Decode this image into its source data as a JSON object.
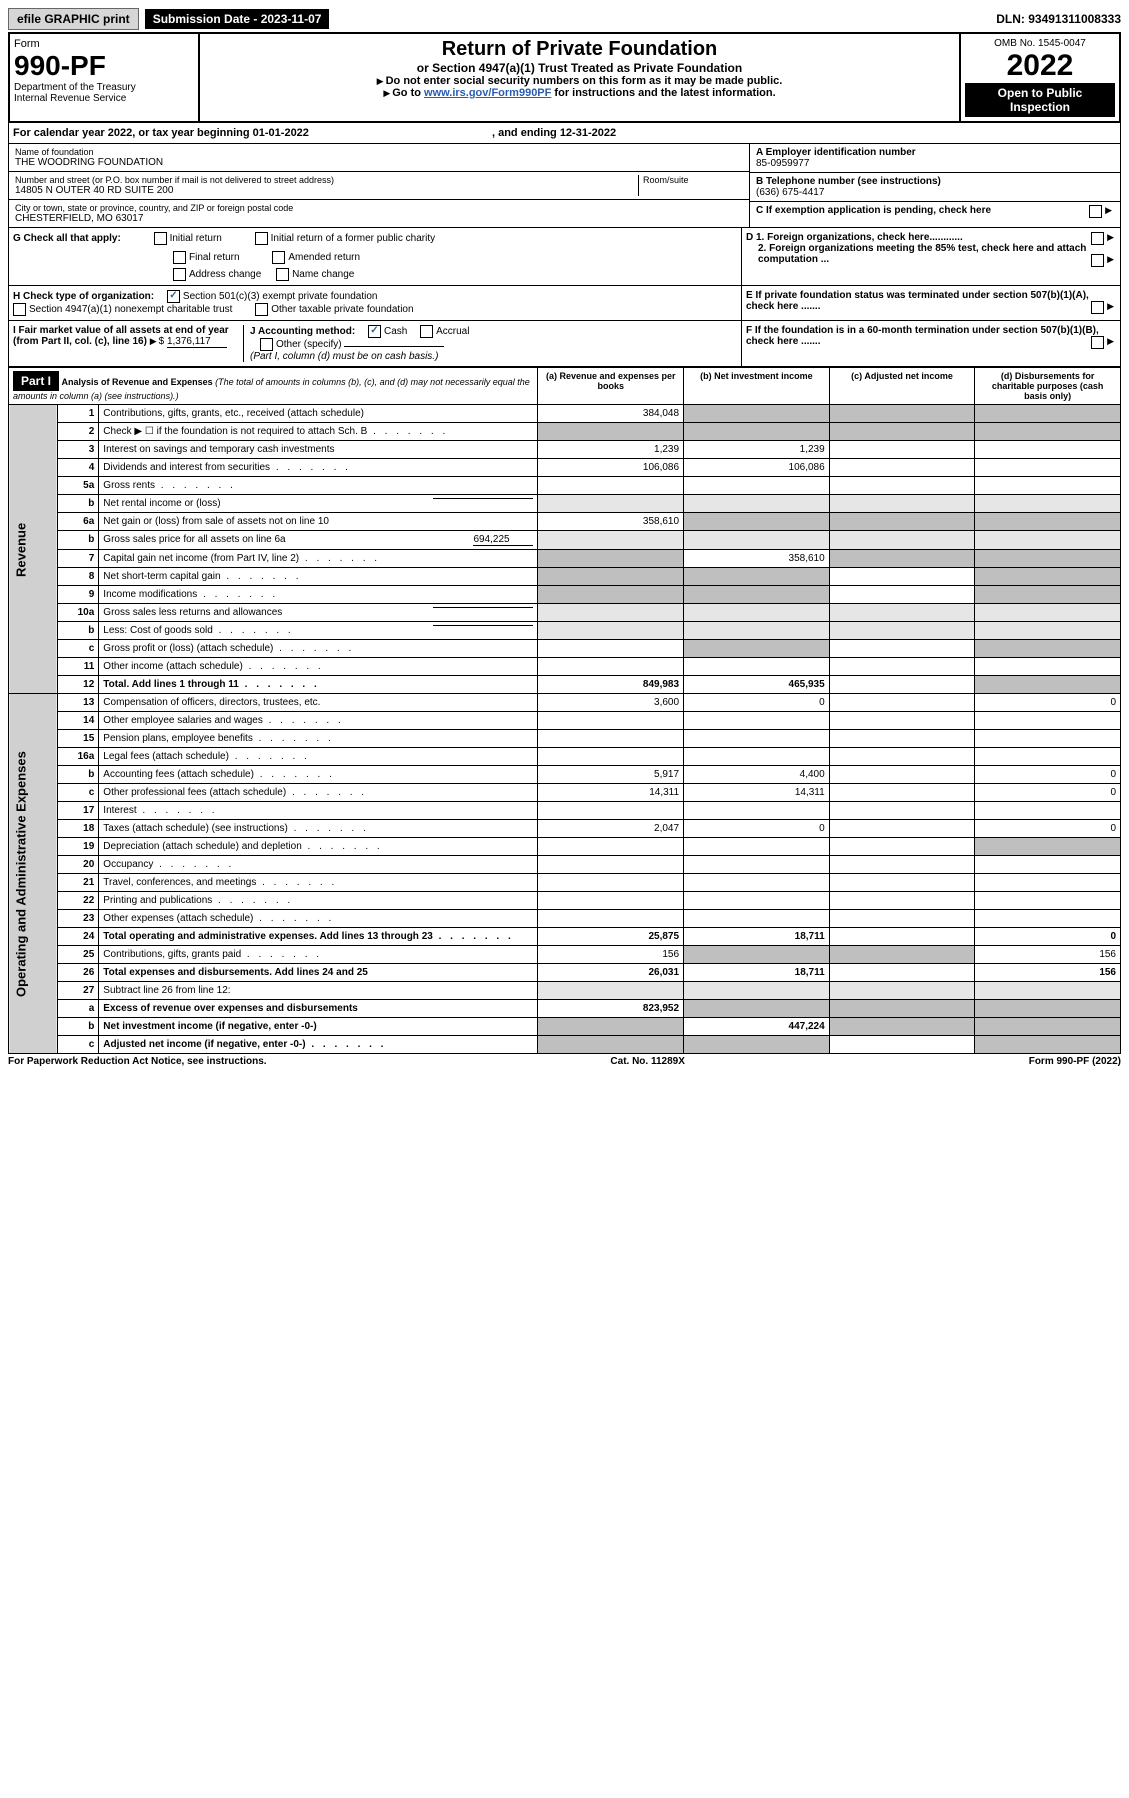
{
  "top": {
    "efile": "efile GRAPHIC print",
    "submission": "Submission Date - 2023-11-07",
    "dln": "DLN: 93491311008333"
  },
  "header": {
    "form_label": "Form",
    "form_number": "990-PF",
    "dept": "Department of the Treasury",
    "irs": "Internal Revenue Service",
    "title": "Return of Private Foundation",
    "subtitle": "or Section 4947(a)(1) Trust Treated as Private Foundation",
    "instr1": "Do not enter social security numbers on this form as it may be made public.",
    "instr2_prefix": "Go to ",
    "instr2_link": "www.irs.gov/Form990PF",
    "instr2_suffix": " for instructions and the latest information.",
    "omb": "OMB No. 1545-0047",
    "year": "2022",
    "open": "Open to Public Inspection"
  },
  "cal_year": "For calendar year 2022, or tax year beginning 01-01-2022",
  "cal_year_end": ", and ending 12-31-2022",
  "name_label": "Name of foundation",
  "name": "THE WOODRING FOUNDATION",
  "addr_label": "Number and street (or P.O. box number if mail is not delivered to street address)",
  "addr": "14805 N OUTER 40 RD SUITE 200",
  "room_label": "Room/suite",
  "city_label": "City or town, state or province, country, and ZIP or foreign postal code",
  "city": "CHESTERFIELD, MO  63017",
  "ein_label": "A Employer identification number",
  "ein": "85-0959977",
  "phone_label": "B Telephone number (see instructions)",
  "phone": "(636) 675-4417",
  "c_label": "C If exemption application is pending, check here",
  "d1": "D 1. Foreign organizations, check here............",
  "d2": "2. Foreign organizations meeting the 85% test, check here and attach computation ...",
  "e_label": "E If private foundation status was terminated under section 507(b)(1)(A), check here .......",
  "f_label": "F If the foundation is in a 60-month termination under section 507(b)(1)(B), check here .......",
  "g_label": "G Check all that apply:",
  "g_opts": {
    "initial": "Initial return",
    "initial_former": "Initial return of a former public charity",
    "final": "Final return",
    "amended": "Amended return",
    "address": "Address change",
    "name": "Name change"
  },
  "h_label": "H Check type of organization:",
  "h_501c3": "Section 501(c)(3) exempt private foundation",
  "h_4947": "Section 4947(a)(1) nonexempt charitable trust",
  "h_other_tax": "Other taxable private foundation",
  "i_label": "I Fair market value of all assets at end of year (from Part II, col. (c), line 16)",
  "i_value": "1,376,117",
  "j_label": "J Accounting method:",
  "j_cash": "Cash",
  "j_accrual": "Accrual",
  "j_other": "Other (specify)",
  "j_note": "(Part I, column (d) must be on cash basis.)",
  "part1_label": "Part I",
  "part1_title": "Analysis of Revenue and Expenses",
  "part1_note": "(The total of amounts in columns (b), (c), and (d) may not necessarily equal the amounts in column (a) (see instructions).)",
  "cols": {
    "a": "(a) Revenue and expenses per books",
    "b": "(b) Net investment income",
    "c": "(c) Adjusted net income",
    "d": "(d) Disbursements for charitable purposes (cash basis only)"
  },
  "section_labels": {
    "revenue": "Revenue",
    "opex": "Operating and Administrative Expenses"
  },
  "rows": [
    {
      "n": "1",
      "desc": "Contributions, gifts, grants, etc., received (attach schedule)",
      "a": "384,048",
      "shade": [
        "b",
        "c",
        "d"
      ]
    },
    {
      "n": "2",
      "desc": "Check ▶ ☐ if the foundation is not required to attach Sch. B",
      "dots": true,
      "shade": [
        "a",
        "b",
        "c",
        "d"
      ]
    },
    {
      "n": "3",
      "desc": "Interest on savings and temporary cash investments",
      "a": "1,239",
      "b": "1,239"
    },
    {
      "n": "4",
      "desc": "Dividends and interest from securities",
      "dots": true,
      "a": "106,086",
      "b": "106,086"
    },
    {
      "n": "5a",
      "desc": "Gross rents",
      "dots": true
    },
    {
      "n": "b",
      "desc": "Net rental income or (loss)",
      "underline": true,
      "shade": [
        "a",
        "b",
        "c",
        "d"
      ],
      "shadeLight": true
    },
    {
      "n": "6a",
      "desc": "Net gain or (loss) from sale of assets not on line 10",
      "a": "358,610",
      "shade": [
        "b",
        "c",
        "d"
      ]
    },
    {
      "n": "b",
      "desc": "Gross sales price for all assets on line 6a",
      "inline_val": "694,225",
      "shade": [
        "a",
        "b",
        "c",
        "d"
      ],
      "shadeLight": true
    },
    {
      "n": "7",
      "desc": "Capital gain net income (from Part IV, line 2)",
      "dots": true,
      "b": "358,610",
      "shade": [
        "a",
        "c",
        "d"
      ]
    },
    {
      "n": "8",
      "desc": "Net short-term capital gain",
      "dots": true,
      "shade": [
        "a",
        "b",
        "d"
      ]
    },
    {
      "n": "9",
      "desc": "Income modifications",
      "dots": true,
      "shade": [
        "a",
        "b",
        "d"
      ]
    },
    {
      "n": "10a",
      "desc": "Gross sales less returns and allowances",
      "underline": true,
      "shade": [
        "a",
        "b",
        "c",
        "d"
      ],
      "shadeLight": true
    },
    {
      "n": "b",
      "desc": "Less: Cost of goods sold",
      "dots": true,
      "underline": true,
      "shade": [
        "a",
        "b",
        "c",
        "d"
      ],
      "shadeLight": true
    },
    {
      "n": "c",
      "desc": "Gross profit or (loss) (attach schedule)",
      "dots": true,
      "shade": [
        "b",
        "d"
      ]
    },
    {
      "n": "11",
      "desc": "Other income (attach schedule)",
      "dots": true
    },
    {
      "n": "12",
      "desc": "Total. Add lines 1 through 11",
      "dots": true,
      "bold": true,
      "a": "849,983",
      "b": "465,935",
      "shade": [
        "d"
      ]
    }
  ],
  "opex_rows": [
    {
      "n": "13",
      "desc": "Compensation of officers, directors, trustees, etc.",
      "a": "3,600",
      "b": "0",
      "d": "0"
    },
    {
      "n": "14",
      "desc": "Other employee salaries and wages",
      "dots": true
    },
    {
      "n": "15",
      "desc": "Pension plans, employee benefits",
      "dots": true
    },
    {
      "n": "16a",
      "desc": "Legal fees (attach schedule)",
      "dots": true
    },
    {
      "n": "b",
      "desc": "Accounting fees (attach schedule)",
      "dots": true,
      "a": "5,917",
      "b": "4,400",
      "d": "0"
    },
    {
      "n": "c",
      "desc": "Other professional fees (attach schedule)",
      "dots": true,
      "a": "14,311",
      "b": "14,311",
      "d": "0"
    },
    {
      "n": "17",
      "desc": "Interest",
      "dots": true
    },
    {
      "n": "18",
      "desc": "Taxes (attach schedule) (see instructions)",
      "dots": true,
      "a": "2,047",
      "b": "0",
      "d": "0"
    },
    {
      "n": "19",
      "desc": "Depreciation (attach schedule) and depletion",
      "dots": true,
      "shade": [
        "d"
      ]
    },
    {
      "n": "20",
      "desc": "Occupancy",
      "dots": true
    },
    {
      "n": "21",
      "desc": "Travel, conferences, and meetings",
      "dots": true
    },
    {
      "n": "22",
      "desc": "Printing and publications",
      "dots": true
    },
    {
      "n": "23",
      "desc": "Other expenses (attach schedule)",
      "dots": true
    },
    {
      "n": "24",
      "desc": "Total operating and administrative expenses. Add lines 13 through 23",
      "dots": true,
      "bold": true,
      "a": "25,875",
      "b": "18,711",
      "d": "0"
    },
    {
      "n": "25",
      "desc": "Contributions, gifts, grants paid",
      "dots": true,
      "a": "156",
      "d": "156",
      "shade": [
        "b",
        "c"
      ]
    },
    {
      "n": "26",
      "desc": "Total expenses and disbursements. Add lines 24 and 25",
      "bold": true,
      "a": "26,031",
      "b": "18,711",
      "d": "156"
    },
    {
      "n": "27",
      "desc": "Subtract line 26 from line 12:",
      "shade": [
        "a",
        "b",
        "c",
        "d"
      ],
      "shadeLight": true
    },
    {
      "n": "a",
      "desc": "Excess of revenue over expenses and disbursements",
      "bold": true,
      "a": "823,952",
      "shade": [
        "b",
        "c",
        "d"
      ]
    },
    {
      "n": "b",
      "desc": "Net investment income (if negative, enter -0-)",
      "bold": true,
      "b": "447,224",
      "shade": [
        "a",
        "c",
        "d"
      ]
    },
    {
      "n": "c",
      "desc": "Adjusted net income (if negative, enter -0-)",
      "dots": true,
      "bold": true,
      "shade": [
        "a",
        "b",
        "d"
      ]
    }
  ],
  "footer": {
    "left": "For Paperwork Reduction Act Notice, see instructions.",
    "center": "Cat. No. 11289X",
    "right": "Form 990-PF (2022)"
  }
}
